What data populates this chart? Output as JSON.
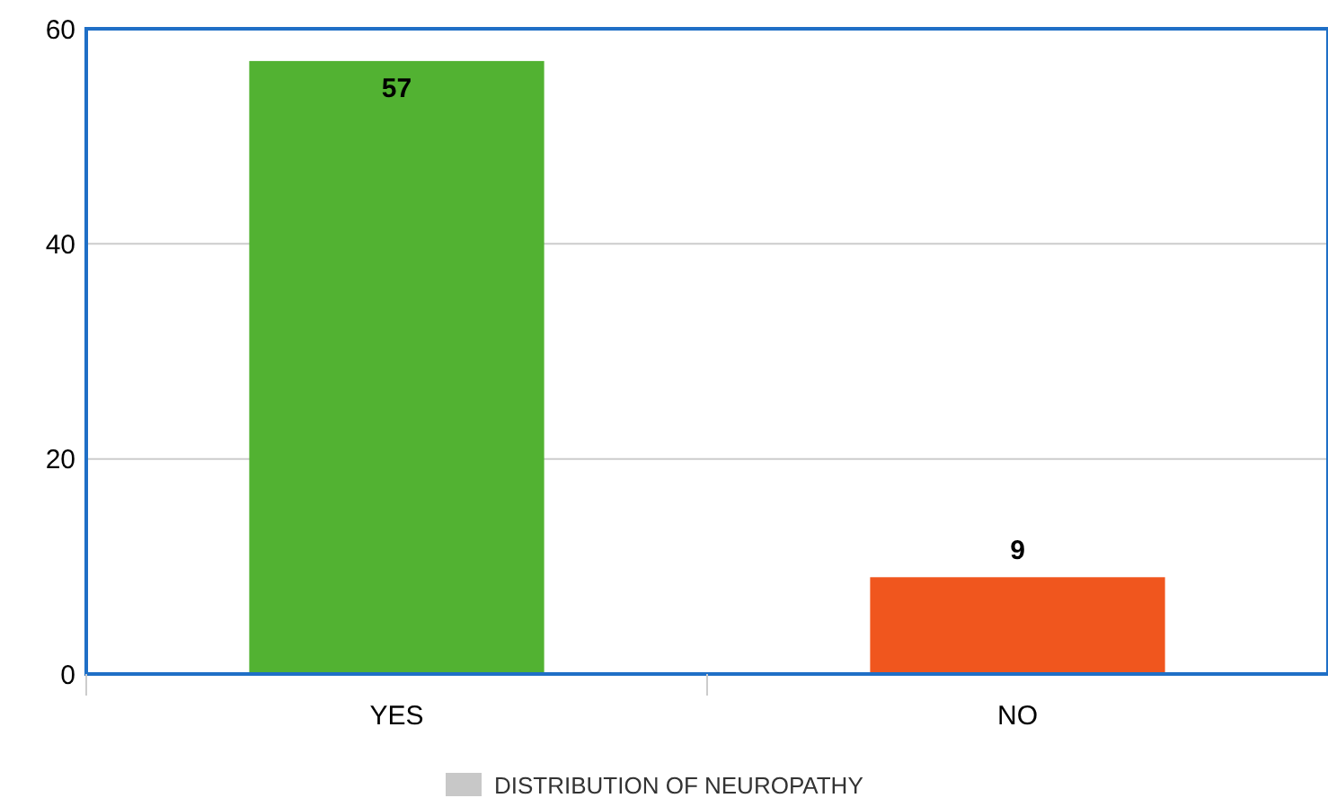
{
  "chart_data": {
    "type": "bar",
    "categories": [
      "YES",
      "NO"
    ],
    "series": [
      {
        "name": "DISTRIBUTION OF NEUROPATHY",
        "color": "#c8c8c8",
        "colors": [
          "#52b232",
          "#f0561e"
        ],
        "values": [
          57,
          9
        ]
      }
    ],
    "ylim": [
      0,
      60
    ],
    "yticks": [
      0,
      20,
      40,
      60
    ],
    "grid": "y",
    "data_labels": true,
    "legend": "bottom"
  }
}
